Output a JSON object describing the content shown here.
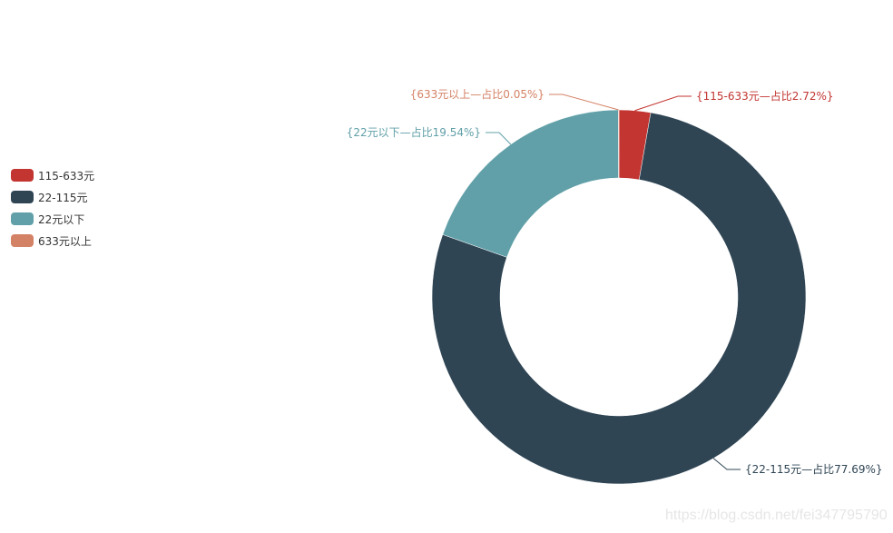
{
  "chart_data": {
    "type": "pie",
    "variant": "donut",
    "categories": [
      "115-633元",
      "22-115元",
      "22元以下",
      "633元以上"
    ],
    "values": [
      2.72,
      77.69,
      19.54,
      0.05
    ],
    "labels": [
      "{115-633元—占比2.72%}",
      "{22-115元—占比77.69%}",
      "{22元以下—占比19.54%}",
      "{633元以上—占比0.05%}"
    ],
    "colors": [
      "#c23531",
      "#2f4554",
      "#61a0a8",
      "#d48265"
    ],
    "legend": {
      "placement": "left",
      "items": [
        "115-633元",
        "22-115元",
        "22元以下",
        "633元以上"
      ]
    }
  },
  "watermark": "https://blog.csdn.net/fei347795790"
}
